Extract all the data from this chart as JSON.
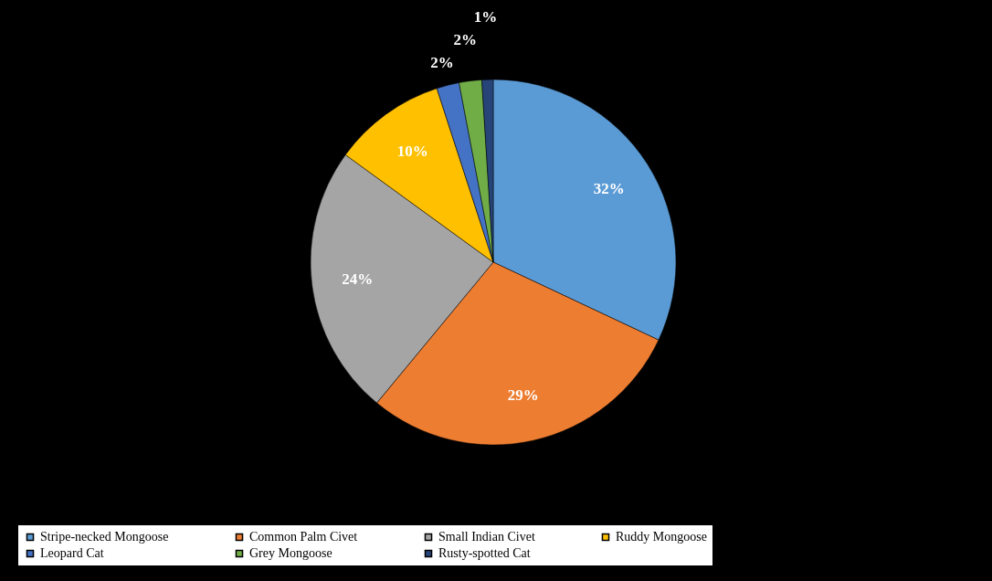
{
  "chart_data": {
    "type": "pie",
    "categories": [
      "Stripe-necked Mongoose",
      "Common Palm Civet",
      "Small Indian Civet",
      "Ruddy Mongoose",
      "Leopard Cat",
      "Grey Mongoose",
      "Rusty-spotted Cat"
    ],
    "values": [
      32,
      29,
      24,
      10,
      2,
      2,
      1
    ],
    "value_labels": [
      "32%",
      "29%",
      "24%",
      "10%",
      "2%",
      "2%",
      "1%"
    ],
    "colors": [
      "#5b9bd5",
      "#ed7d31",
      "#a5a5a5",
      "#ffc000",
      "#4472c4",
      "#70ad47",
      "#264478"
    ],
    "legend": "bottom"
  }
}
